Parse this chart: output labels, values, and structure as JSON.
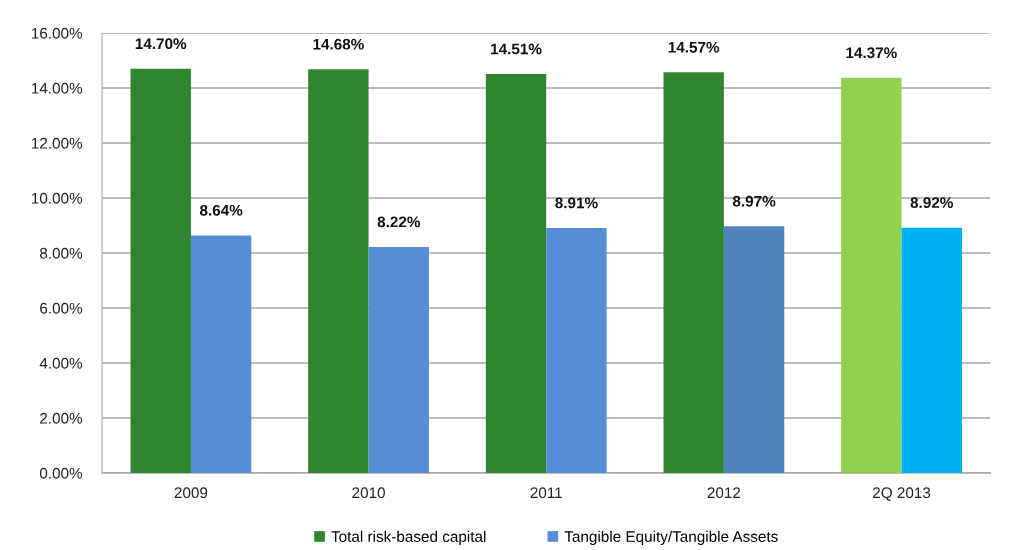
{
  "chart_data": {
    "type": "bar",
    "categories": [
      "2009",
      "2010",
      "2011",
      "2012",
      "2Q 2013"
    ],
    "series": [
      {
        "name": "Total risk-based capital",
        "color": "#31852f",
        "colors": [
          "#31852f",
          "#31852f",
          "#31852f",
          "#31852f",
          "#92d050"
        ],
        "values": [
          14.7,
          14.68,
          14.51,
          14.57,
          14.37
        ],
        "value_labels": [
          "14.70%",
          "14.68%",
          "14.51%",
          "14.57%",
          "14.37%"
        ]
      },
      {
        "name": "Tangible Equity/Tangible Assets",
        "color": "#558ed5",
        "colors": [
          "#558ed5",
          "#558ed5",
          "#558ed5",
          "#4f81bd",
          "#00b0f0"
        ],
        "values": [
          8.64,
          8.22,
          8.91,
          8.97,
          8.92
        ],
        "value_labels": [
          "8.64%",
          "8.22%",
          "8.91%",
          "8.97%",
          "8.92%"
        ]
      }
    ],
    "ylim": [
      0,
      16
    ],
    "yticks": [
      {
        "value": 0,
        "label": "0.00%"
      },
      {
        "value": 2,
        "label": "2.00%"
      },
      {
        "value": 4,
        "label": "4.00%"
      },
      {
        "value": 6,
        "label": "6.00%"
      },
      {
        "value": 8,
        "label": "8.00%"
      },
      {
        "value": 10,
        "label": "10.00%"
      },
      {
        "value": 12,
        "label": "12.00%"
      },
      {
        "value": 14,
        "label": "14.00%"
      },
      {
        "value": 16,
        "label": "16.00%"
      }
    ],
    "grid": "y",
    "legend": "bottom"
  }
}
